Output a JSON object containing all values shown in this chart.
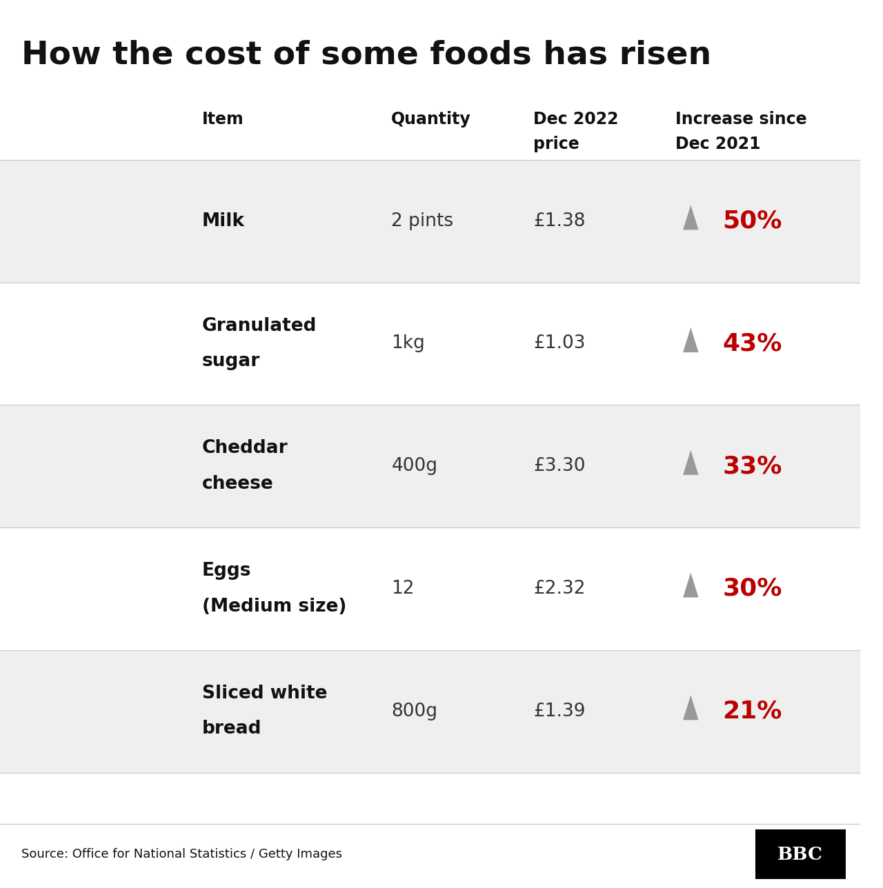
{
  "title": "How the cost of some foods has risen",
  "rows": [
    {
      "item_lines": [
        "Milk"
      ],
      "quantity": "2 pints",
      "price": "£1.38",
      "increase": "50%"
    },
    {
      "item_lines": [
        "Granulated",
        "sugar"
      ],
      "quantity": "1kg",
      "price": "£1.03",
      "increase": "43%"
    },
    {
      "item_lines": [
        "Cheddar",
        "cheese"
      ],
      "quantity": "400g",
      "price": "£3.30",
      "increase": "33%"
    },
    {
      "item_lines": [
        "Eggs",
        "(Medium size)"
      ],
      "quantity": "12",
      "price": "£2.32",
      "increase": "30%"
    },
    {
      "item_lines": [
        "Sliced white",
        "bread"
      ],
      "quantity": "800g",
      "price": "£1.39",
      "increase": "21%"
    }
  ],
  "row_bg_colors": [
    "#efefef",
    "#ffffff",
    "#efefef",
    "#ffffff",
    "#efefef"
  ],
  "increase_color": "#bb0000",
  "arrow_color": "#999999",
  "background_color": "#ffffff",
  "source_text": "Source: Office for National Statistics / Getty Images",
  "separator_color": "#cccccc",
  "title_fontsize": 34,
  "header_fontsize": 17,
  "cell_fontsize": 19,
  "increase_fontsize": 26,
  "col_item": 0.235,
  "col_qty": 0.455,
  "col_price": 0.615,
  "col_arrow": 0.795,
  "col_increase": 0.84
}
